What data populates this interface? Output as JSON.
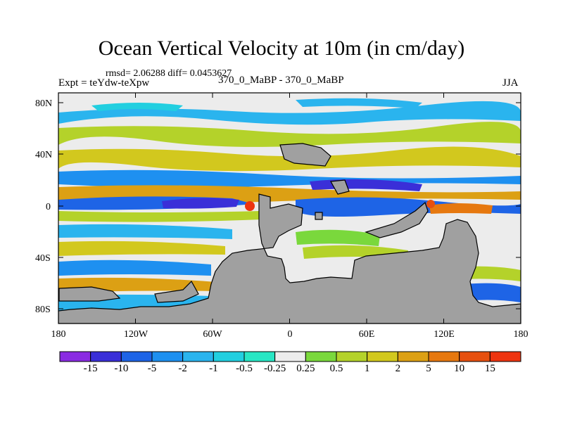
{
  "title": "Ocean Vertical Velocity at 10m (in cm/day)",
  "stats": "rmsd= 2.06288 diff= 0.0453627",
  "experiment": "Expt = teYdw-teXpw",
  "comparison": "370_0_MaBP - 370_0_MaBP",
  "season": "JJA",
  "lat_labels": [
    "80N",
    "40N",
    "0",
    "40S",
    "80S"
  ],
  "lon_labels": [
    "180",
    "120W",
    "60W",
    "0",
    "60E",
    "120E",
    "180"
  ],
  "colorbar": {
    "labels": [
      "-15",
      "-10",
      "-5",
      "-2",
      "-1",
      "-0.5",
      "-0.25",
      "0.25",
      "0.5",
      "1",
      "2",
      "5",
      "10",
      "15"
    ],
    "colors": [
      "#8a2be2",
      "#3a2fd8",
      "#1e64e6",
      "#1e90f0",
      "#2ab4ee",
      "#22cfe0",
      "#28e6c4",
      "#ececec",
      "#7ad83c",
      "#b4d22a",
      "#d2c81e",
      "#dca014",
      "#e6780f",
      "#e6500f",
      "#ee3410"
    ]
  },
  "colors": {
    "land": "#a0a0a0",
    "background": "#ffffff"
  }
}
